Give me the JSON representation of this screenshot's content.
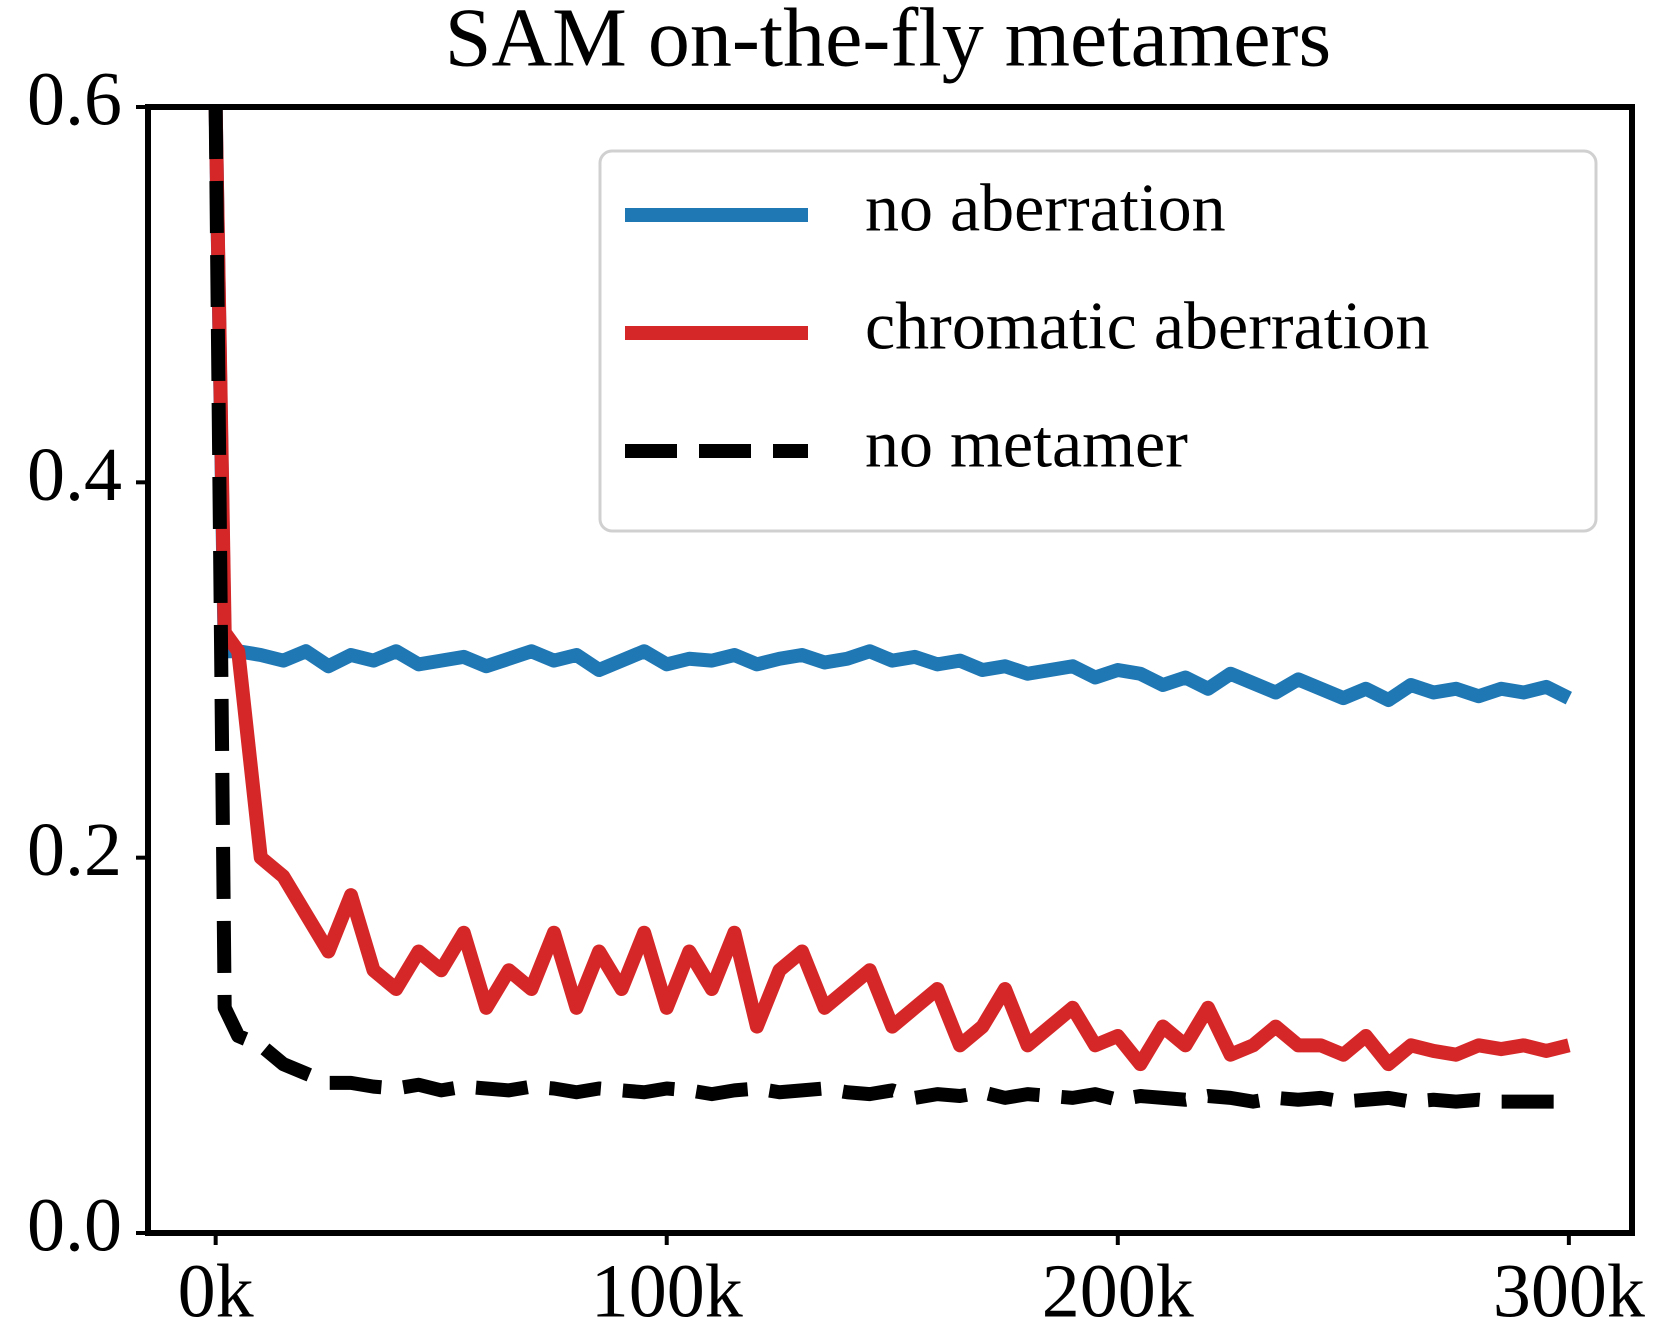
{
  "chart_data": {
    "type": "line",
    "title": "SAM on-the-fly metamers",
    "x": [
      0,
      2000,
      5000,
      10000,
      15000,
      20000,
      25000,
      30000,
      35000,
      40000,
      45000,
      50000,
      55000,
      60000,
      65000,
      70000,
      75000,
      80000,
      85000,
      90000,
      95000,
      100000,
      105000,
      110000,
      115000,
      120000,
      125000,
      130000,
      135000,
      140000,
      145000,
      150000,
      155000,
      160000,
      165000,
      170000,
      175000,
      180000,
      185000,
      190000,
      195000,
      200000,
      205000,
      210000,
      215000,
      220000,
      225000,
      230000,
      235000,
      240000,
      245000,
      250000,
      255000,
      260000,
      265000,
      270000,
      275000,
      280000,
      285000,
      290000,
      295000,
      300000
    ],
    "series": [
      {
        "name": "no aberration",
        "color": "#1f77b4",
        "dashed": false,
        "values": [
          0.6,
          0.31,
          0.31,
          0.308,
          0.305,
          0.31,
          0.302,
          0.308,
          0.305,
          0.31,
          0.303,
          0.305,
          0.307,
          0.302,
          0.306,
          0.31,
          0.305,
          0.308,
          0.3,
          0.305,
          0.31,
          0.303,
          0.306,
          0.305,
          0.308,
          0.303,
          0.306,
          0.308,
          0.304,
          0.306,
          0.31,
          0.305,
          0.307,
          0.303,
          0.305,
          0.3,
          0.302,
          0.298,
          0.3,
          0.302,
          0.296,
          0.3,
          0.298,
          0.292,
          0.296,
          0.29,
          0.298,
          0.293,
          0.288,
          0.295,
          0.29,
          0.285,
          0.29,
          0.284,
          0.292,
          0.288,
          0.29,
          0.286,
          0.29,
          0.288,
          0.291,
          0.285
        ]
      },
      {
        "name": "chromatic aberration",
        "color": "#d62728",
        "dashed": false,
        "values": [
          0.6,
          0.32,
          0.31,
          0.2,
          0.19,
          0.17,
          0.15,
          0.18,
          0.14,
          0.13,
          0.15,
          0.14,
          0.16,
          0.12,
          0.14,
          0.13,
          0.16,
          0.12,
          0.15,
          0.13,
          0.16,
          0.12,
          0.15,
          0.13,
          0.16,
          0.11,
          0.14,
          0.15,
          0.12,
          0.13,
          0.14,
          0.11,
          0.12,
          0.13,
          0.1,
          0.11,
          0.13,
          0.1,
          0.11,
          0.12,
          0.1,
          0.105,
          0.09,
          0.11,
          0.1,
          0.12,
          0.095,
          0.1,
          0.11,
          0.1,
          0.1,
          0.095,
          0.105,
          0.09,
          0.1,
          0.097,
          0.095,
          0.1,
          0.098,
          0.1,
          0.097,
          0.1
        ]
      },
      {
        "name": "no metamer",
        "color": "#000000",
        "dashed": true,
        "values": [
          0.6,
          0.12,
          0.105,
          0.1,
          0.09,
          0.085,
          0.08,
          0.08,
          0.078,
          0.077,
          0.079,
          0.076,
          0.078,
          0.077,
          0.076,
          0.078,
          0.077,
          0.075,
          0.077,
          0.076,
          0.075,
          0.077,
          0.076,
          0.074,
          0.076,
          0.077,
          0.075,
          0.076,
          0.077,
          0.075,
          0.074,
          0.076,
          0.072,
          0.074,
          0.073,
          0.075,
          0.072,
          0.074,
          0.073,
          0.072,
          0.074,
          0.071,
          0.073,
          0.072,
          0.071,
          0.073,
          0.072,
          0.07,
          0.072,
          0.071,
          0.072,
          0.07,
          0.071,
          0.072,
          0.07,
          0.071,
          0.07,
          0.071,
          0.07,
          0.07,
          0.07,
          0.07
        ]
      }
    ],
    "xlim": [
      -15000,
      314000
    ],
    "xticks": [
      {
        "value": 0,
        "label": "0k"
      },
      {
        "value": 100000,
        "label": "100k"
      },
      {
        "value": 200000,
        "label": "200k"
      },
      {
        "value": 300000,
        "label": "300k"
      }
    ],
    "ylim": [
      0,
      0.6
    ],
    "yticks": [
      {
        "value": 0,
        "label": "0.0"
      },
      0.2,
      0.4,
      0.6
    ],
    "grid": false,
    "legend": "upper right"
  }
}
